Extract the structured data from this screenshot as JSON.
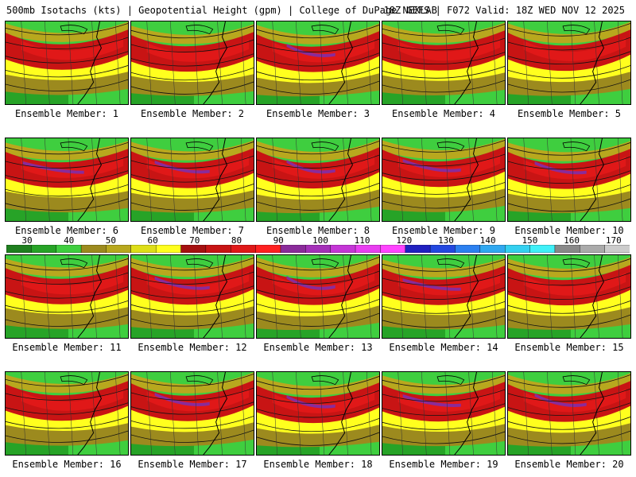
{
  "header": {
    "title_left": "500mb Isotachs (kts) | Geopotential Height (gpm) | College of DuPage NEXLAB",
    "title_right": "18Z GEFS | F072 Valid: 18Z WED NOV 12 2025"
  },
  "panels": [
    {
      "label": "Ensemble Member: 1"
    },
    {
      "label": "Ensemble Member: 2"
    },
    {
      "label": "Ensemble Member: 3"
    },
    {
      "label": "Ensemble Member: 4"
    },
    {
      "label": "Ensemble Member: 5"
    },
    {
      "label": "Ensemble Member: 6"
    },
    {
      "label": "Ensemble Member: 7"
    },
    {
      "label": "Ensemble Member: 8"
    },
    {
      "label": "Ensemble Member: 9"
    },
    {
      "label": "Ensemble Member: 10"
    },
    {
      "label": "Ensemble Member: 11"
    },
    {
      "label": "Ensemble Member: 12"
    },
    {
      "label": "Ensemble Member: 13"
    },
    {
      "label": "Ensemble Member: 14"
    },
    {
      "label": "Ensemble Member: 15"
    },
    {
      "label": "Ensemble Member: 16"
    },
    {
      "label": "Ensemble Member: 17"
    },
    {
      "label": "Ensemble Member: 18"
    },
    {
      "label": "Ensemble Member: 19"
    },
    {
      "label": "Ensemble Member: 20"
    }
  ],
  "colorbar": {
    "ticks": [
      "30",
      "40",
      "50",
      "60",
      "70",
      "80",
      "90",
      "100",
      "110",
      "120",
      "130",
      "140",
      "150",
      "160",
      "170"
    ],
    "colors": [
      "#1f7f1f",
      "#27a327",
      "#3fce3f",
      "#9c8a1e",
      "#b8a81e",
      "#dede18",
      "#ffff1e",
      "#a51010",
      "#c81414",
      "#e01818",
      "#ff2020",
      "#8a2b9a",
      "#a430b8",
      "#c436d6",
      "#e83ef0",
      "#ff44ff",
      "#2020c0",
      "#2448e0",
      "#2c80f0",
      "#30a8f0",
      "#34d0f0",
      "#40f0f8",
      "#888888",
      "#aaaaaa",
      "#cccccc"
    ]
  }
}
